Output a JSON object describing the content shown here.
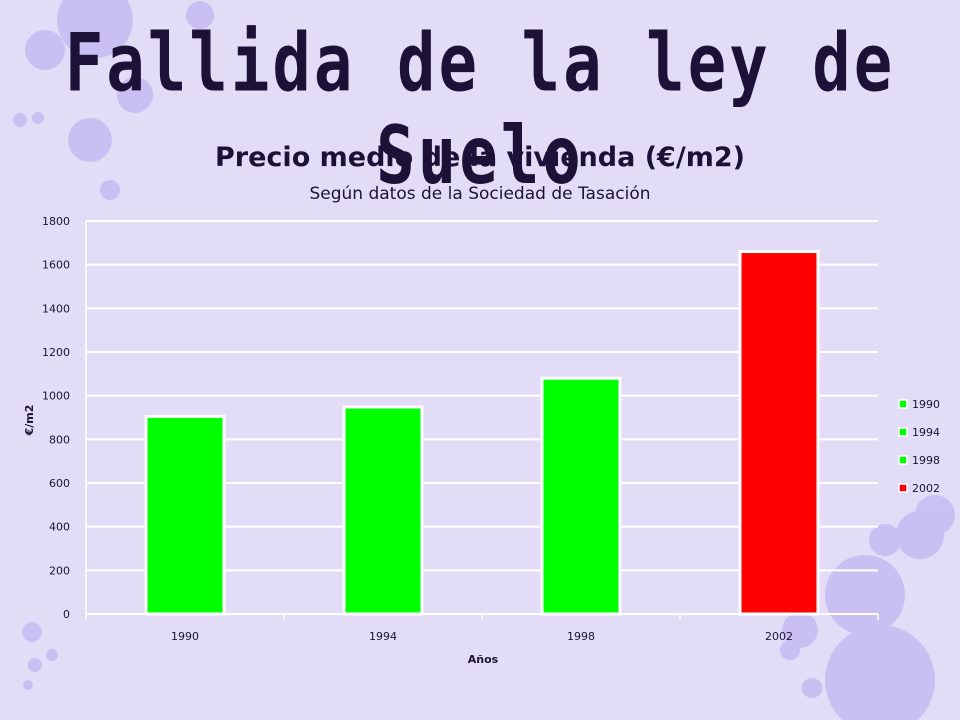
{
  "slide": {
    "title": "Fallida de la ley de Suelo"
  },
  "colors": {
    "background": "#e2dcf7",
    "bar_green": "#00ff00",
    "bar_red": "#ff0000",
    "title_text": "#1c1238",
    "bubble": "#b7a9ef"
  },
  "chart_data": {
    "type": "bar",
    "title": "Precio medio de la vivienda (€/m2)",
    "subtitle": "Según datos de la Sociedad de Tasación",
    "xlabel": "Años",
    "ylabel": "€/m2",
    "categories": [
      "1990",
      "1994",
      "1998",
      "2002"
    ],
    "values": [
      905,
      948,
      1080,
      1660
    ],
    "bar_colors": [
      "#00ff00",
      "#00ff00",
      "#00ff00",
      "#ff0000"
    ],
    "ylim": [
      0,
      1800
    ],
    "yticks": [
      0,
      200,
      400,
      600,
      800,
      1000,
      1200,
      1400,
      1600,
      1800
    ],
    "grid": true,
    "legend": {
      "placement": "right",
      "entries": [
        {
          "label": "1990",
          "color": "#00ff00"
        },
        {
          "label": "1994",
          "color": "#00ff00"
        },
        {
          "label": "1998",
          "color": "#00ff00"
        },
        {
          "label": "2002",
          "color": "#ff0000"
        }
      ]
    }
  }
}
